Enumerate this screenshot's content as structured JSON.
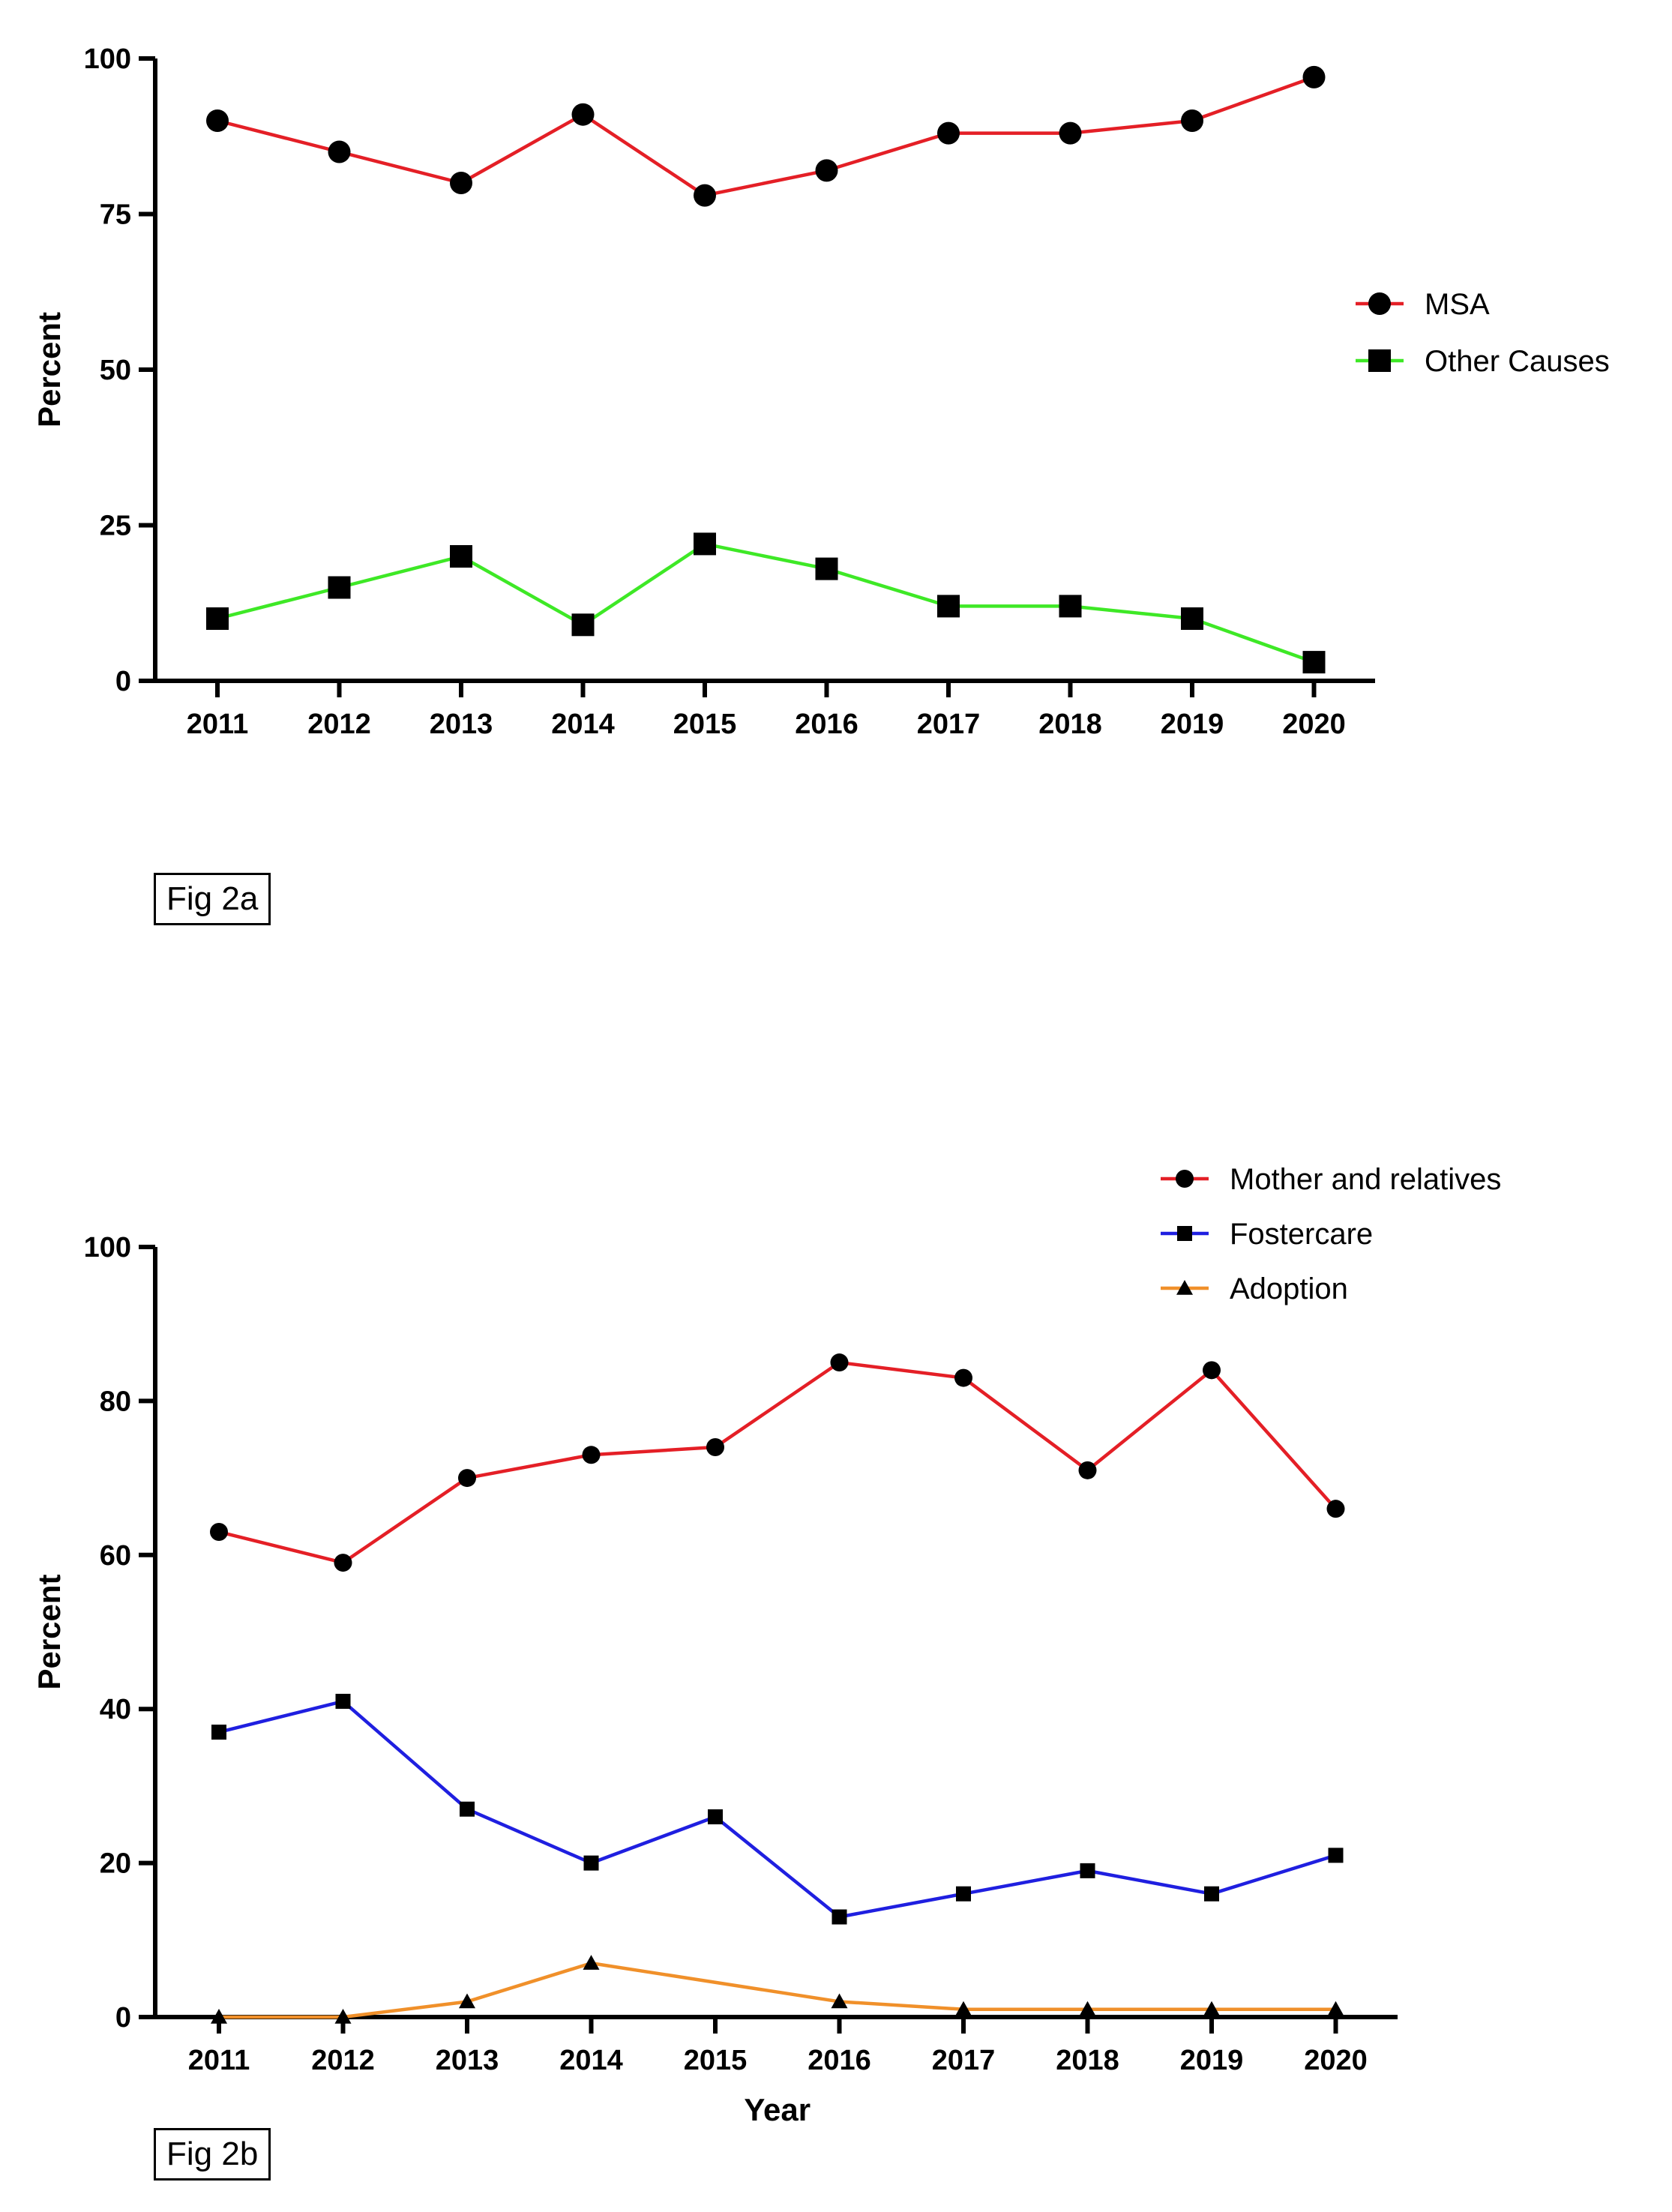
{
  "chart_data": [
    {
      "type": "line",
      "xlabel": "",
      "ylabel": "Percent",
      "ylim": [
        0,
        100
      ],
      "yticks": [
        0,
        25,
        50,
        75,
        100
      ],
      "categories": [
        "2011",
        "2012",
        "2013",
        "2014",
        "2015",
        "2016",
        "2017",
        "2018",
        "2019",
        "2020"
      ],
      "legend_position": "right",
      "series": [
        {
          "name": "MSA",
          "color": "#e41f26",
          "marker": "circle",
          "values": [
            90,
            85,
            80,
            91,
            78,
            82,
            88,
            88,
            90,
            97
          ]
        },
        {
          "name": "Other Causes",
          "color": "#3ee826",
          "marker": "square",
          "values": [
            10,
            15,
            20,
            9,
            22,
            18,
            12,
            12,
            10,
            3
          ]
        }
      ],
      "caption": "Fig 2a"
    },
    {
      "type": "line",
      "xlabel": "Year",
      "ylabel": "Percent",
      "ylim": [
        0,
        100
      ],
      "yticks": [
        0,
        20,
        40,
        60,
        80,
        100
      ],
      "categories": [
        "2011",
        "2012",
        "2013",
        "2014",
        "2015",
        "2016",
        "2017",
        "2018",
        "2019",
        "2020"
      ],
      "legend_position": "top-right",
      "series": [
        {
          "name": "Mother and relatives",
          "color": "#e41f26",
          "marker": "circle",
          "values": [
            63,
            59,
            70,
            73,
            74,
            85,
            83,
            71,
            84,
            66
          ]
        },
        {
          "name": "Fostercare",
          "color": "#1f1fe0",
          "marker": "square",
          "values": [
            37,
            41,
            27,
            20,
            26,
            13,
            16,
            19,
            16,
            21
          ]
        },
        {
          "name": "Adoption",
          "color": "#f0902a",
          "marker": "triangle",
          "values": [
            0,
            0,
            2,
            7,
            null,
            2,
            1,
            1,
            1,
            1
          ]
        }
      ],
      "caption": "Fig 2b"
    }
  ]
}
